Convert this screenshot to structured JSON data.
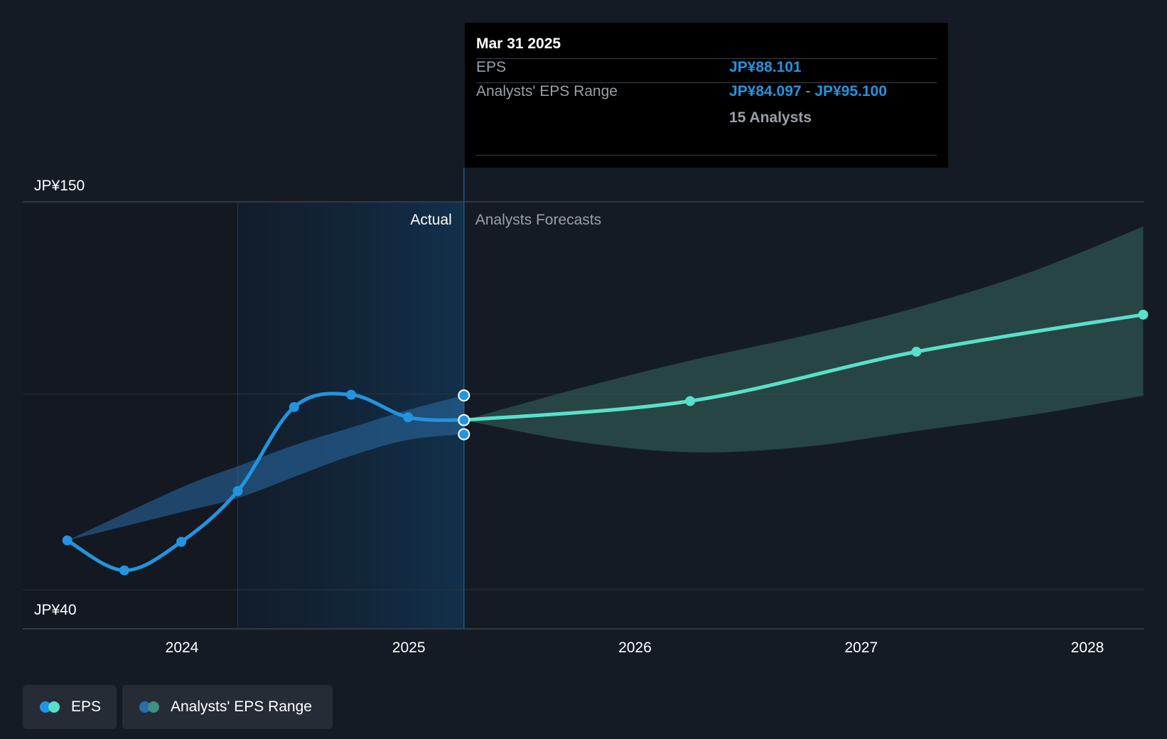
{
  "chart_data": {
    "type": "line",
    "y_axis": {
      "min": 40,
      "max": 150,
      "tick_labels": [
        "JP¥150",
        "JP¥40"
      ]
    },
    "x_axis": {
      "tick_labels": [
        "2024",
        "2025",
        "2026",
        "2027",
        "2028"
      ]
    },
    "grid": true,
    "regions": {
      "actual_label": "Actual",
      "forecast_label": "Analysts Forecasts"
    },
    "series": [
      {
        "name": "EPS",
        "color": "#2394df",
        "points": [
          {
            "x": "2023-06-30",
            "y": 54.0
          },
          {
            "x": "2023-09-30",
            "y": 45.5
          },
          {
            "x": "2023-12-31",
            "y": 53.6
          },
          {
            "x": "2024-03-31",
            "y": 68.0
          },
          {
            "x": "2024-06-30",
            "y": 91.8
          },
          {
            "x": "2024-09-30",
            "y": 95.3
          },
          {
            "x": "2024-12-31",
            "y": 88.9
          },
          {
            "x": "2025-03-31",
            "y": 88.101
          }
        ]
      },
      {
        "name": "EPS",
        "color": "#58e0c9",
        "points": [
          {
            "x": "2025-03-31",
            "y": 88.101
          },
          {
            "x": "2026-03-31",
            "y": 93.5
          },
          {
            "x": "2027-03-31",
            "y": 107.5
          },
          {
            "x": "2028-03-31",
            "y": 118.0
          }
        ]
      }
    ],
    "range_bands": [
      {
        "name": "Analysts' EPS Range",
        "color": "#2a6ea8",
        "points": [
          {
            "x": "2023-06-30",
            "low": 54.0,
            "high": 54.0
          },
          {
            "x": "2023-12-31",
            "low": 62.0,
            "high": 69.0
          },
          {
            "x": "2024-03-31",
            "low": 66.0,
            "high": 75.0
          },
          {
            "x": "2024-06-30",
            "low": 72.0,
            "high": 81.0
          },
          {
            "x": "2024-09-30",
            "low": 78.0,
            "high": 86.0
          },
          {
            "x": "2024-12-31",
            "low": 82.5,
            "high": 91.0
          },
          {
            "x": "2025-03-31",
            "low": 84.097,
            "high": 95.1
          }
        ]
      },
      {
        "name": "Analysts' EPS Range",
        "color": "#2f5752",
        "points": [
          {
            "x": "2025-03-31",
            "low": 88.101,
            "high": 88.101
          },
          {
            "x": "2025-09-30",
            "low": 82.0,
            "high": 97.0
          },
          {
            "x": "2026-03-31",
            "low": 79.0,
            "high": 105.0
          },
          {
            "x": "2026-09-30",
            "low": 80.5,
            "high": 112.0
          },
          {
            "x": "2027-03-31",
            "low": 85.0,
            "high": 120.0
          },
          {
            "x": "2027-09-30",
            "low": 89.5,
            "high": 130.0
          },
          {
            "x": "2028-03-31",
            "low": 95.0,
            "high": 143.0
          }
        ]
      }
    ],
    "tooltip": {
      "date": "Mar 31 2025",
      "eps_label": "EPS",
      "eps_value": "JP¥88.101",
      "range_label": "Analysts' EPS Range",
      "range_low": "JP¥84.097",
      "range_sep": "-",
      "range_high": "JP¥95.100",
      "analysts": "15 Analysts"
    },
    "legend": [
      {
        "label": "EPS",
        "colors": [
          "#2394df",
          "#58e0c9"
        ]
      },
      {
        "label": "Analysts' EPS Range",
        "colors": [
          "#2a6ea8",
          "#3f8f83"
        ]
      }
    ]
  }
}
